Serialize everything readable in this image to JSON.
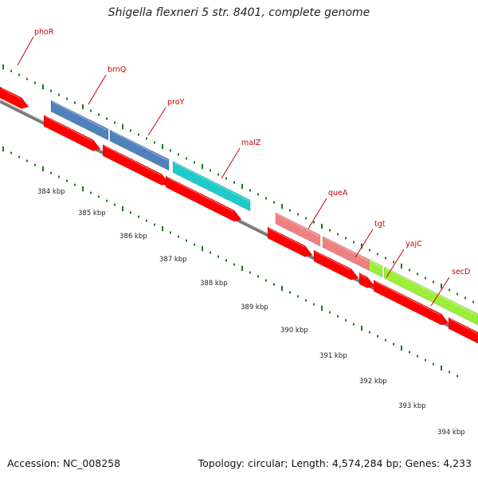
{
  "title": "Shigella flexneri 5 str. 8401, complete genome",
  "footer": {
    "accession": "Accession: NC_008258",
    "summary": "Topology: circular; Length: 4,574,284 bp; Genes: 4,233"
  },
  "colors": {
    "backbone": "#7a7a7a",
    "cds": "#ff0000",
    "dots": "#1a7a1a",
    "label": "#cc0000"
  },
  "scale_labels": [
    "384 kbp",
    "385 kbp",
    "386 kbp",
    "387 kbp",
    "388 kbp",
    "389 kbp",
    "390 kbp",
    "391 kbp",
    "392 kbp",
    "393 kbp",
    "394 kbp"
  ],
  "genes": [
    {
      "name": "phoR",
      "color": "#ff0000"
    },
    {
      "name": "brnQ",
      "color": "#4f81bd"
    },
    {
      "name": "proY",
      "color": "#4f81bd"
    },
    {
      "name": "malZ",
      "color": "#1ecaca"
    },
    {
      "name": "queA",
      "color": "#f08080"
    },
    {
      "name": "tgt",
      "color": "#f08080"
    },
    {
      "name": "yajC",
      "color": "#9aee3a"
    },
    {
      "name": "secD",
      "color": "#9aee3a"
    }
  ]
}
